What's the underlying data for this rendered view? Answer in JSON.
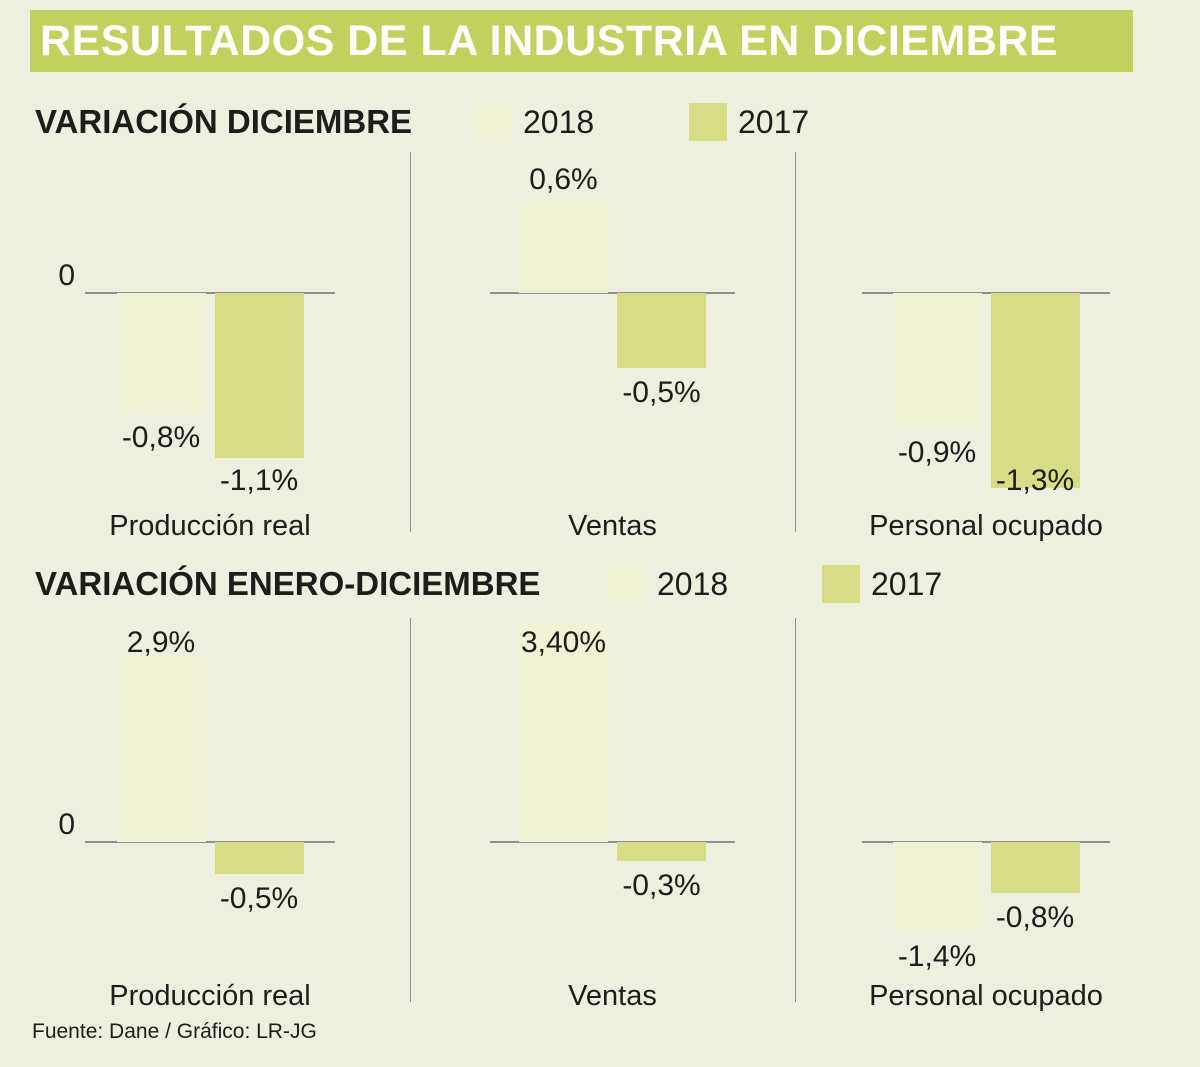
{
  "header": {
    "title": "RESULTADOS DE LA INDUSTRIA EN DICIEMBRE"
  },
  "footer": {
    "source": "Fuente: Dane / Gráfico: LR-JG"
  },
  "colors": {
    "background": "#eef0df",
    "header_band": "#c4d05e",
    "series_2018": "#f1f1d3",
    "series_2017": "#d8dd85",
    "axis_line": "#8e9090",
    "text": "#1d1d1b"
  },
  "chart_data": [
    {
      "type": "bar",
      "title": "VARIACIÓN DICIEMBRE",
      "legend": [
        "2018",
        "2017"
      ],
      "legend_position": "top",
      "grid": false,
      "unit": "%",
      "baseline_label": "0",
      "categories": [
        "Producción real",
        "Ventas",
        "Personal ocupado"
      ],
      "series": [
        {
          "name": "2018",
          "values": [
            -0.8,
            0.6,
            -0.9
          ],
          "labels": [
            "-0,8%",
            "0,6%",
            "-0,9%"
          ]
        },
        {
          "name": "2017",
          "values": [
            -1.1,
            -0.5,
            -1.3
          ],
          "labels": [
            "-1,1%",
            "-0,5%",
            "-1,3%"
          ]
        }
      ],
      "ylim": [
        -1.5,
        0.8
      ]
    },
    {
      "type": "bar",
      "title": "VARIACIÓN ENERO-DICIEMBRE",
      "legend": [
        "2018",
        "2017"
      ],
      "legend_position": "top",
      "grid": false,
      "unit": "%",
      "baseline_label": "0",
      "categories": [
        "Producción real",
        "Ventas",
        "Personal ocupado"
      ],
      "series": [
        {
          "name": "2018",
          "values": [
            2.9,
            3.4,
            -1.4
          ],
          "labels": [
            "2,9%",
            "3,40%",
            "-1,4%"
          ]
        },
        {
          "name": "2017",
          "values": [
            -0.5,
            -0.3,
            -0.8
          ],
          "labels": [
            "-0,5%",
            "-0,3%",
            "-0,8%"
          ]
        }
      ],
      "ylim": [
        -1.6,
        3.5
      ]
    }
  ]
}
